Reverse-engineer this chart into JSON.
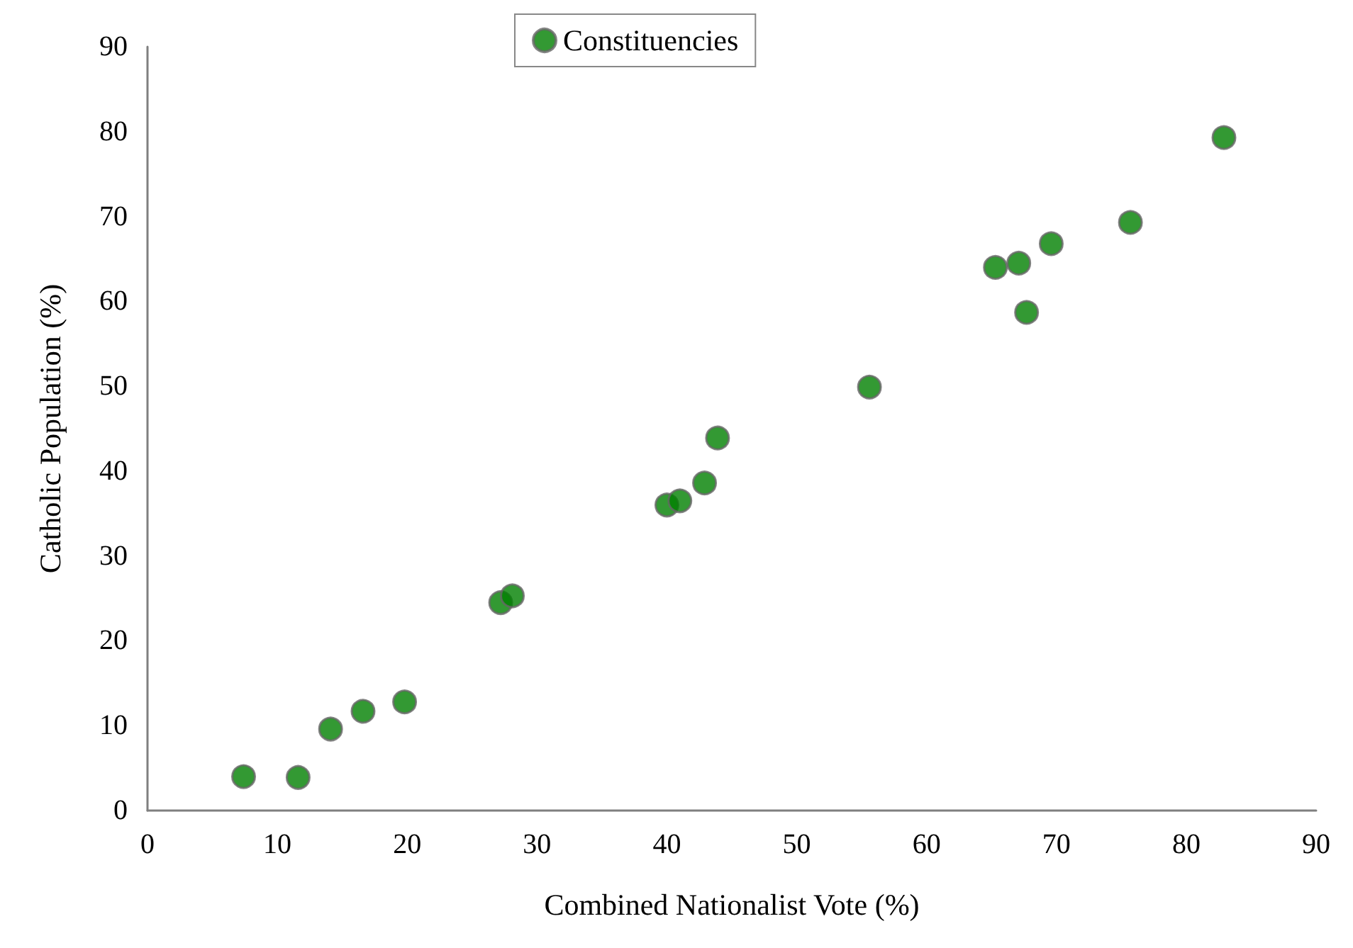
{
  "chart_data": {
    "type": "scatter",
    "xlabel": "Combined Nationalist Vote (%)",
    "ylabel": "Catholic Population (%)",
    "series": [
      {
        "name": "Constituencies",
        "color": "#008000",
        "x": [
          7.4,
          11.6,
          14.1,
          16.6,
          19.8,
          27.2,
          28.1,
          40.0,
          41.0,
          42.9,
          43.9,
          55.6,
          65.3,
          67.1,
          67.7,
          69.6,
          75.7,
          82.9
        ],
        "values": [
          4.0,
          3.9,
          9.6,
          11.7,
          12.8,
          24.5,
          25.3,
          36.0,
          36.5,
          38.6,
          43.9,
          49.9,
          64.0,
          64.5,
          58.7,
          66.8,
          69.3,
          79.3
        ]
      }
    ],
    "xlim": [
      0,
      90
    ],
    "xticks": [
      0,
      10,
      20,
      30,
      40,
      50,
      60,
      70,
      80,
      90
    ],
    "ylim": [
      0,
      90
    ],
    "yticks": [
      0,
      10,
      20,
      30,
      40,
      50,
      60,
      70,
      80,
      90
    ],
    "grid": false,
    "legend": "top",
    "marker": "circle"
  }
}
